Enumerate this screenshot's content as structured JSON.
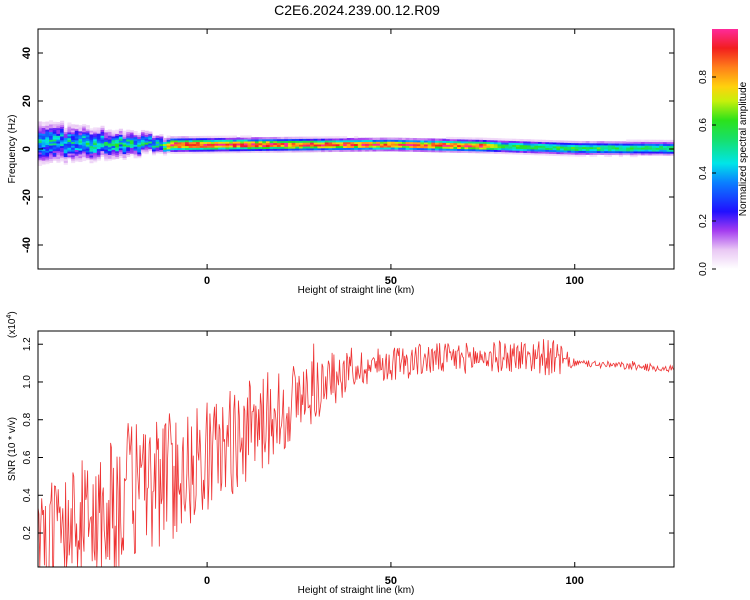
{
  "title": "C2E6.2024.239.00.12.R09",
  "chart_data": [
    {
      "type": "heatmap",
      "name": "spectrogram",
      "xlabel": "Height of straight line (km)",
      "ylabel": "Frequency (Hz)",
      "xlim": [
        -46,
        127
      ],
      "ylim": [
        -50,
        50
      ],
      "x_ticks": [
        0,
        50,
        100
      ],
      "y_ticks": [
        -40,
        -20,
        0,
        20,
        40
      ],
      "colorbar": {
        "label": "Normalized spectral amplitude",
        "range": [
          0,
          1
        ],
        "ticks": [
          "0.0",
          "0.2",
          "0.4",
          "0.6",
          "0.8"
        ],
        "colormap": "rainbow (white-purple-blue-cyan-green-yellow-orange-red-magenta)"
      },
      "band_center_hz": [
        {
          "x": -46,
          "f": 2
        },
        {
          "x": -20,
          "f": 2
        },
        {
          "x": -10,
          "f": 1.5
        },
        {
          "x": 0,
          "f": 1.5
        },
        {
          "x": 50,
          "f": 1.5
        },
        {
          "x": 75,
          "f": 1
        },
        {
          "x": 100,
          "f": 0
        },
        {
          "x": 127,
          "f": 0
        }
      ],
      "band_halfwidth_hz": [
        {
          "x": -46,
          "w": 9
        },
        {
          "x": -20,
          "w": 5
        },
        {
          "x": -10,
          "w": 3
        },
        {
          "x": 50,
          "w": 2.5
        },
        {
          "x": 127,
          "w": 3
        }
      ],
      "peak_amplitude": [
        {
          "x": -46,
          "a": 0.45
        },
        {
          "x": -12,
          "a": 0.55
        },
        {
          "x": -10,
          "a": 0.95
        },
        {
          "x": 75,
          "a": 0.9
        },
        {
          "x": 80,
          "a": 0.6
        },
        {
          "x": 127,
          "a": 0.55
        }
      ]
    },
    {
      "type": "line",
      "name": "snr",
      "xlabel": "Height of straight line (km)",
      "ylabel": "SNR (10 * v/v)",
      "y_multiplier": "(x10",
      "y_multiplier_exp": "4",
      "xlim": [
        -46,
        127
      ],
      "ylim": [
        0.02,
        1.27
      ],
      "x_ticks": [
        0,
        50,
        100
      ],
      "y_ticks": [
        "0.2",
        "0.4",
        "0.6",
        "0.8",
        "1.0",
        "1.2"
      ],
      "color": "#ee3333",
      "trend": [
        {
          "x": -46,
          "y": 0.15
        },
        {
          "x": -30,
          "y": 0.28
        },
        {
          "x": -20,
          "y": 0.42
        },
        {
          "x": -10,
          "y": 0.5
        },
        {
          "x": 0,
          "y": 0.6
        },
        {
          "x": 10,
          "y": 0.72
        },
        {
          "x": 20,
          "y": 0.85
        },
        {
          "x": 30,
          "y": 0.97
        },
        {
          "x": 40,
          "y": 1.07
        },
        {
          "x": 50,
          "y": 1.1
        },
        {
          "x": 60,
          "y": 1.12
        },
        {
          "x": 75,
          "y": 1.13
        },
        {
          "x": 90,
          "y": 1.14
        },
        {
          "x": 100,
          "y": 1.1
        },
        {
          "x": 127,
          "y": 1.07
        }
      ],
      "noise_amplitude": [
        {
          "x": -46,
          "a": 0.3
        },
        {
          "x": -20,
          "a": 0.4
        },
        {
          "x": 0,
          "a": 0.3
        },
        {
          "x": 20,
          "a": 0.25
        },
        {
          "x": 40,
          "a": 0.1
        },
        {
          "x": 75,
          "a": 0.08
        },
        {
          "x": 95,
          "a": 0.1
        },
        {
          "x": 100,
          "a": 0.02
        },
        {
          "x": 127,
          "a": 0.02
        }
      ]
    }
  ]
}
